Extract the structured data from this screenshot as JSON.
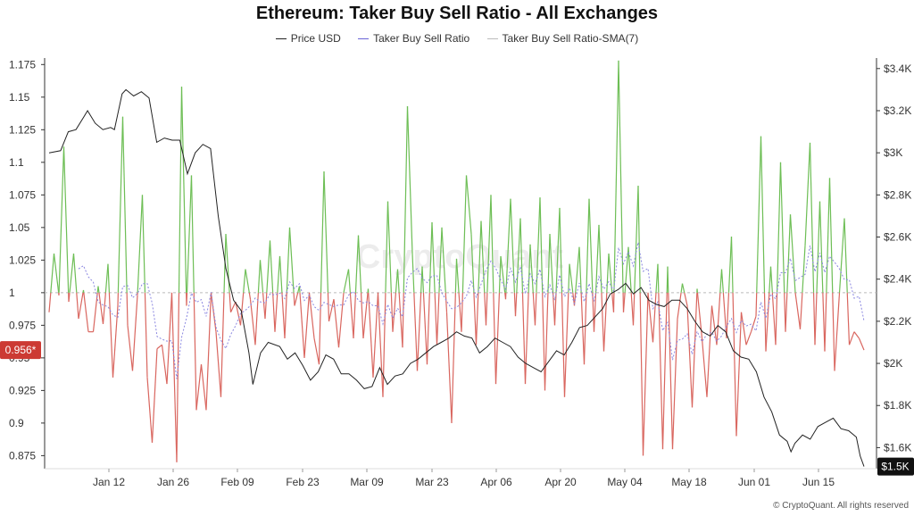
{
  "chart_data": {
    "type": "line",
    "title": "Ethereum: Taker Buy Sell Ratio - All Exchanges",
    "legend": [
      "Price USD",
      "Taker Buy Sell Ratio",
      "Taker Buy Sell Ratio-SMA(7)"
    ],
    "legend_position": "top-center",
    "x_tick_labels": [
      "Jan 12",
      "Jan 26",
      "Feb 09",
      "Feb 23",
      "Mar 09",
      "Mar 23",
      "Apr 06",
      "Apr 20",
      "May 04",
      "May 18",
      "Jun 01",
      "Jun 15"
    ],
    "left_axis": {
      "ticks": [
        "0.875",
        "0.9",
        "0.925",
        "0.95",
        "0.975",
        "1",
        "1.025",
        "1.05",
        "1.075",
        "1.1",
        "1.125",
        "1.15",
        "1.175"
      ],
      "ylim": [
        0.865,
        1.18
      ],
      "reference_value": 1,
      "current_value_badge": "0.956*"
    },
    "right_axis": {
      "ticks": [
        "$1.6K",
        "$1.8K",
        "$2K",
        "$2.2K",
        "$2.4K",
        "$2.6K",
        "$2.8K",
        "$3K",
        "$3.2K",
        "$3.4K"
      ],
      "ylim": [
        1500,
        3450
      ],
      "current_value_badge": "$1.5K"
    },
    "ratio_values": [
      0.985,
      1.03,
      0.998,
      1.112,
      0.993,
      1.03,
      0.98,
      1.002,
      0.97,
      0.97,
      1.005,
      0.976,
      1.022,
      0.935,
      0.99,
      1.135,
      0.975,
      0.94,
      0.998,
      1.075,
      0.935,
      0.885,
      0.957,
      0.96,
      0.93,
      1.0,
      0.87,
      1.158,
      0.99,
      1.09,
      0.91,
      0.945,
      0.91,
      1.0,
      0.97,
      0.92,
      1.045,
      0.985,
      0.993,
      0.975,
      1.018,
      0.995,
      0.96,
      1.025,
      0.98,
      1.04,
      0.97,
      1.028,
      0.965,
      1.05,
      0.99,
      1.005,
      0.95,
      1.0,
      0.965,
      0.945,
      1.093,
      0.978,
      0.995,
      0.958,
      1.0,
      1.018,
      0.965,
      1.044,
      0.965,
      1.003,
      0.935,
      1.0,
      0.92,
      1.07,
      0.97,
      1.018,
      0.958,
      1.143,
      1.03,
      0.94,
      1.02,
      0.945,
      1.054,
      0.96,
      1.05,
      0.985,
      0.9,
      1.026,
      0.97,
      1.09,
      1.045,
      0.96,
      1.055,
      0.975,
      1.075,
      0.93,
      1.028,
      0.995,
      1.072,
      0.982,
      1.057,
      0.93,
      1.037,
      0.975,
      1.073,
      0.925,
      1.045,
      0.975,
      1.065,
      0.92,
      1.022,
      0.99,
      1.035,
      0.945,
      1.072,
      0.97,
      1.052,
      0.955,
      1.03,
      0.985,
      1.178,
      0.985,
      1.035,
      0.975,
      1.082,
      0.875,
      1.0,
      0.962,
      1.022,
      0.88,
      1.02,
      0.88,
      0.98,
      1.007,
      0.99,
      0.912,
      1.003,
      0.965,
      0.92,
      0.99,
      0.96,
      1.018,
      0.965,
      1.043,
      0.89,
      0.985,
      0.96,
      0.97,
      0.982,
      1.12,
      0.955,
      1.02,
      0.96,
      1.1,
      0.97,
      1.06,
      1.0,
      0.972,
      1.036,
      1.115,
      0.96,
      1.07,
      0.955,
      1.088,
      0.94,
      1.0,
      1.057,
      0.96,
      0.97,
      0.965,
      0.956
    ]
  },
  "footer": {
    "credit": "© CryptoQuant. All rights reserved"
  },
  "colors": {
    "price": "#222222",
    "ratio_up": "#6dbe55",
    "ratio_down": "#d9665f",
    "sma": "#8a86e0",
    "reference_line": "#bbbbbb",
    "badge_left": "#cc3a33",
    "badge_right": "#111111"
  }
}
